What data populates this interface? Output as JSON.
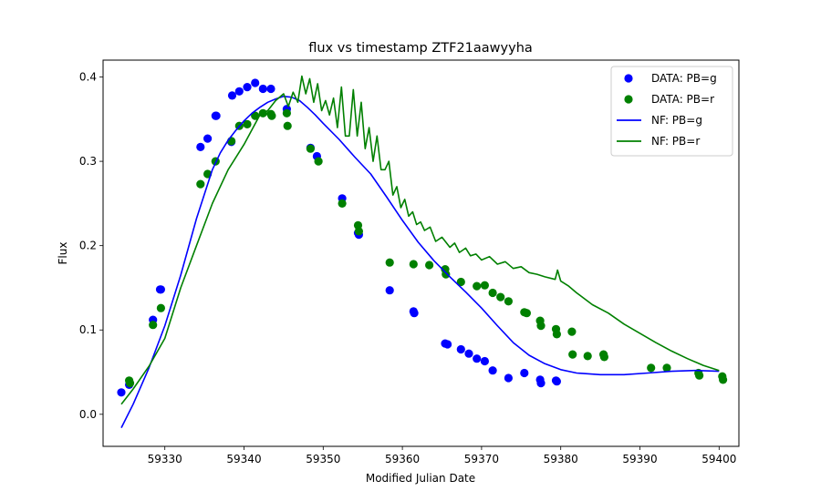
{
  "chart_data": {
    "type": "scatter",
    "title": "flux vs timestamp ZTF21aawyyha",
    "xlabel": "Modified Julian Date",
    "ylabel": "Flux",
    "xlim": [
      59322.2,
      59402.5
    ],
    "ylim": [
      -0.038,
      0.42
    ],
    "xticks": [
      "59330",
      "59340",
      "59350",
      "59360",
      "59370",
      "59380",
      "59390",
      "59400"
    ],
    "yticks": [
      "0.0",
      "0.1",
      "0.2",
      "0.3",
      "0.4"
    ],
    "grid": false,
    "legend_position": "top-right",
    "colors": {
      "g": "#0000ff",
      "r": "#008000"
    },
    "series": [
      {
        "name": "DATA: PB=g",
        "kind": "scatter",
        "color": "#0000ff",
        "points": [
          [
            59324.5,
            0.026
          ],
          [
            59325.5,
            0.035
          ],
          [
            59328.5,
            0.112
          ],
          [
            59329.4,
            0.148
          ],
          [
            59329.5,
            0.148
          ],
          [
            59334.5,
            0.317
          ],
          [
            59335.4,
            0.327
          ],
          [
            59336.4,
            0.354
          ],
          [
            59336.5,
            0.354
          ],
          [
            59338.5,
            0.378
          ],
          [
            59338.4,
            0.323
          ],
          [
            59339.4,
            0.383
          ],
          [
            59340.4,
            0.388
          ],
          [
            59341.4,
            0.393
          ],
          [
            59342.4,
            0.386
          ],
          [
            59343.4,
            0.386
          ],
          [
            59345.4,
            0.362
          ],
          [
            59348.4,
            0.316
          ],
          [
            59349.2,
            0.306
          ],
          [
            59352.4,
            0.256
          ],
          [
            59354.4,
            0.215
          ],
          [
            59354.5,
            0.213
          ],
          [
            59358.4,
            0.147
          ],
          [
            59361.4,
            0.122
          ],
          [
            59361.5,
            0.12
          ],
          [
            59365.4,
            0.084
          ],
          [
            59365.7,
            0.083
          ],
          [
            59367.4,
            0.077
          ],
          [
            59368.4,
            0.072
          ],
          [
            59369.4,
            0.066
          ],
          [
            59370.4,
            0.063
          ],
          [
            59371.4,
            0.052
          ],
          [
            59373.4,
            0.043
          ],
          [
            59375.4,
            0.049
          ],
          [
            59377.4,
            0.041
          ],
          [
            59377.5,
            0.037
          ],
          [
            59379.4,
            0.04
          ],
          [
            59379.5,
            0.039
          ]
        ]
      },
      {
        "name": "DATA: PB=r",
        "kind": "scatter",
        "color": "#008000",
        "points": [
          [
            59325.5,
            0.04
          ],
          [
            59325.6,
            0.037
          ],
          [
            59328.5,
            0.106
          ],
          [
            59329.5,
            0.126
          ],
          [
            59334.5,
            0.273
          ],
          [
            59335.4,
            0.285
          ],
          [
            59336.4,
            0.3
          ],
          [
            59338.4,
            0.324
          ],
          [
            59339.4,
            0.342
          ],
          [
            59340.4,
            0.344
          ],
          [
            59341.4,
            0.354
          ],
          [
            59342.4,
            0.357
          ],
          [
            59343.4,
            0.356
          ],
          [
            59343.5,
            0.354
          ],
          [
            59345.4,
            0.357
          ],
          [
            59345.5,
            0.342
          ],
          [
            59348.4,
            0.315
          ],
          [
            59349.4,
            0.3
          ],
          [
            59352.4,
            0.25
          ],
          [
            59354.4,
            0.224
          ],
          [
            59354.5,
            0.217
          ],
          [
            59358.4,
            0.18
          ],
          [
            59361.4,
            0.178
          ],
          [
            59363.4,
            0.177
          ],
          [
            59365.4,
            0.172
          ],
          [
            59365.5,
            0.166
          ],
          [
            59367.4,
            0.157
          ],
          [
            59369.4,
            0.152
          ],
          [
            59370.4,
            0.153
          ],
          [
            59371.4,
            0.144
          ],
          [
            59372.4,
            0.139
          ],
          [
            59373.4,
            0.134
          ],
          [
            59375.4,
            0.121
          ],
          [
            59375.7,
            0.12
          ],
          [
            59377.4,
            0.111
          ],
          [
            59377.5,
            0.105
          ],
          [
            59379.4,
            0.101
          ],
          [
            59379.5,
            0.095
          ],
          [
            59381.4,
            0.098
          ],
          [
            59381.5,
            0.071
          ],
          [
            59383.4,
            0.069
          ],
          [
            59385.4,
            0.071
          ],
          [
            59385.5,
            0.068
          ],
          [
            59391.4,
            0.055
          ],
          [
            59393.4,
            0.055
          ],
          [
            59397.4,
            0.049
          ],
          [
            59397.5,
            0.046
          ],
          [
            59400.4,
            0.045
          ],
          [
            59400.5,
            0.041
          ]
        ]
      },
      {
        "name": "NF: PB=g",
        "kind": "line",
        "color": "#0000ff",
        "points": [
          [
            59324.5,
            -0.016
          ],
          [
            59326,
            0.012
          ],
          [
            59328,
            0.055
          ],
          [
            59330,
            0.105
          ],
          [
            59332,
            0.165
          ],
          [
            59334,
            0.232
          ],
          [
            59336,
            0.29
          ],
          [
            59337,
            0.31
          ],
          [
            59338,
            0.325
          ],
          [
            59339,
            0.337
          ],
          [
            59340,
            0.348
          ],
          [
            59341,
            0.357
          ],
          [
            59342,
            0.364
          ],
          [
            59343,
            0.37
          ],
          [
            59344,
            0.374
          ],
          [
            59345,
            0.377
          ],
          [
            59346,
            0.376
          ],
          [
            59347,
            0.372
          ],
          [
            59348,
            0.364
          ],
          [
            59349,
            0.355
          ],
          [
            59350,
            0.345
          ],
          [
            59352,
            0.326
          ],
          [
            59354,
            0.305
          ],
          [
            59356,
            0.285
          ],
          [
            59358,
            0.258
          ],
          [
            59360,
            0.23
          ],
          [
            59362,
            0.204
          ],
          [
            59364,
            0.182
          ],
          [
            59366,
            0.163
          ],
          [
            59368,
            0.145
          ],
          [
            59370,
            0.126
          ],
          [
            59372,
            0.105
          ],
          [
            59374,
            0.085
          ],
          [
            59376,
            0.07
          ],
          [
            59378,
            0.06
          ],
          [
            59380,
            0.053
          ],
          [
            59382,
            0.049
          ],
          [
            59385,
            0.047
          ],
          [
            59388,
            0.047
          ],
          [
            59391,
            0.049
          ],
          [
            59394,
            0.051
          ],
          [
            59397,
            0.052
          ],
          [
            59400,
            0.051
          ]
        ]
      },
      {
        "name": "NF: PB=r",
        "kind": "line",
        "color": "#008000",
        "points": [
          [
            59324.5,
            0.012
          ],
          [
            59326,
            0.03
          ],
          [
            59328,
            0.057
          ],
          [
            59330,
            0.09
          ],
          [
            59332,
            0.15
          ],
          [
            59334,
            0.2
          ],
          [
            59336,
            0.25
          ],
          [
            59338,
            0.29
          ],
          [
            59340,
            0.32
          ],
          [
            59342,
            0.355
          ],
          [
            59343,
            0.36
          ],
          [
            59344,
            0.372
          ],
          [
            59345,
            0.38
          ],
          [
            59345.6,
            0.365
          ],
          [
            59346.2,
            0.382
          ],
          [
            59346.8,
            0.37
          ],
          [
            59347.3,
            0.401
          ],
          [
            59347.8,
            0.38
          ],
          [
            59348.3,
            0.398
          ],
          [
            59348.8,
            0.37
          ],
          [
            59349.3,
            0.392
          ],
          [
            59349.8,
            0.36
          ],
          [
            59350.3,
            0.372
          ],
          [
            59350.8,
            0.355
          ],
          [
            59351.3,
            0.375
          ],
          [
            59351.8,
            0.34
          ],
          [
            59352.3,
            0.388
          ],
          [
            59352.8,
            0.33
          ],
          [
            59353.3,
            0.33
          ],
          [
            59353.8,
            0.385
          ],
          [
            59354.3,
            0.33
          ],
          [
            59354.8,
            0.37
          ],
          [
            59355.3,
            0.315
          ],
          [
            59355.8,
            0.34
          ],
          [
            59356.3,
            0.3
          ],
          [
            59356.8,
            0.33
          ],
          [
            59357.3,
            0.29
          ],
          [
            59357.8,
            0.29
          ],
          [
            59358.3,
            0.3
          ],
          [
            59358.8,
            0.26
          ],
          [
            59359.3,
            0.27
          ],
          [
            59359.8,
            0.245
          ],
          [
            59360.3,
            0.255
          ],
          [
            59360.8,
            0.235
          ],
          [
            59361.3,
            0.24
          ],
          [
            59361.8,
            0.225
          ],
          [
            59362.3,
            0.228
          ],
          [
            59362.8,
            0.218
          ],
          [
            59363.5,
            0.222
          ],
          [
            59364.2,
            0.205
          ],
          [
            59365,
            0.21
          ],
          [
            59366,
            0.198
          ],
          [
            59366.6,
            0.203
          ],
          [
            59367.2,
            0.192
          ],
          [
            59368,
            0.197
          ],
          [
            59368.6,
            0.188
          ],
          [
            59369.3,
            0.19
          ],
          [
            59370,
            0.183
          ],
          [
            59371,
            0.187
          ],
          [
            59372,
            0.178
          ],
          [
            59373,
            0.181
          ],
          [
            59374,
            0.173
          ],
          [
            59375,
            0.175
          ],
          [
            59376,
            0.168
          ],
          [
            59377,
            0.166
          ],
          [
            59378,
            0.163
          ],
          [
            59379.3,
            0.16
          ],
          [
            59379.6,
            0.171
          ],
          [
            59380,
            0.158
          ],
          [
            59381,
            0.152
          ],
          [
            59382,
            0.144
          ],
          [
            59384,
            0.13
          ],
          [
            59386,
            0.12
          ],
          [
            59388,
            0.107
          ],
          [
            59390,
            0.096
          ],
          [
            59392,
            0.085
          ],
          [
            59394,
            0.075
          ],
          [
            59396,
            0.066
          ],
          [
            59398,
            0.058
          ],
          [
            59400,
            0.052
          ]
        ]
      }
    ]
  }
}
